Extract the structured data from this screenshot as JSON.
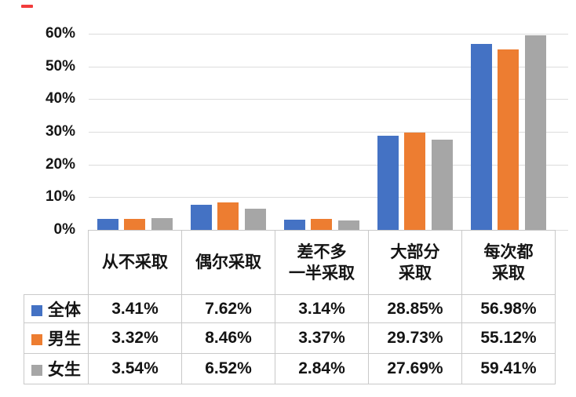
{
  "marker": {
    "name": "red-dash",
    "color": "#f23b3b"
  },
  "chart_data": {
    "type": "bar",
    "title": "",
    "xlabel": "",
    "ylabel": "",
    "categories": [
      "从不采取",
      "偶尔采取",
      "差不多\n一半采取",
      "大部分\n采取",
      "每次都\n采取"
    ],
    "series": [
      {
        "name": "全体",
        "color": "#4472C4",
        "values": [
          3.41,
          7.62,
          3.14,
          28.85,
          56.98
        ]
      },
      {
        "name": "男生",
        "color": "#ED7D31",
        "values": [
          3.32,
          8.46,
          3.37,
          29.73,
          55.12
        ]
      },
      {
        "name": "女生",
        "color": "#A6A6A6",
        "values": [
          3.54,
          6.52,
          2.84,
          27.69,
          59.41
        ]
      }
    ],
    "ylim": [
      0,
      60
    ],
    "ytick_step": 10,
    "ytick_labels": [
      "0%",
      "10%",
      "20%",
      "30%",
      "40%",
      "50%",
      "60%"
    ],
    "grid": true,
    "legend_position": "table-rows-left",
    "value_format": "0.00%"
  },
  "table": {
    "column_headers": [
      "从不采取",
      "偶尔采取",
      "差不多\n一半采取",
      "大部分\n采取",
      "每次都\n采取"
    ],
    "rows": [
      {
        "label": "全体",
        "swatch_color": "#4472C4",
        "values": [
          "3.41%",
          "7.62%",
          "3.14%",
          "28.85%",
          "56.98%"
        ]
      },
      {
        "label": "男生",
        "swatch_color": "#ED7D31",
        "values": [
          "3.32%",
          "8.46%",
          "3.37%",
          "29.73%",
          "55.12%"
        ]
      },
      {
        "label": "女生",
        "swatch_color": "#A6A6A6",
        "values": [
          "3.54%",
          "6.52%",
          "2.84%",
          "27.69%",
          "59.41%"
        ]
      }
    ]
  }
}
